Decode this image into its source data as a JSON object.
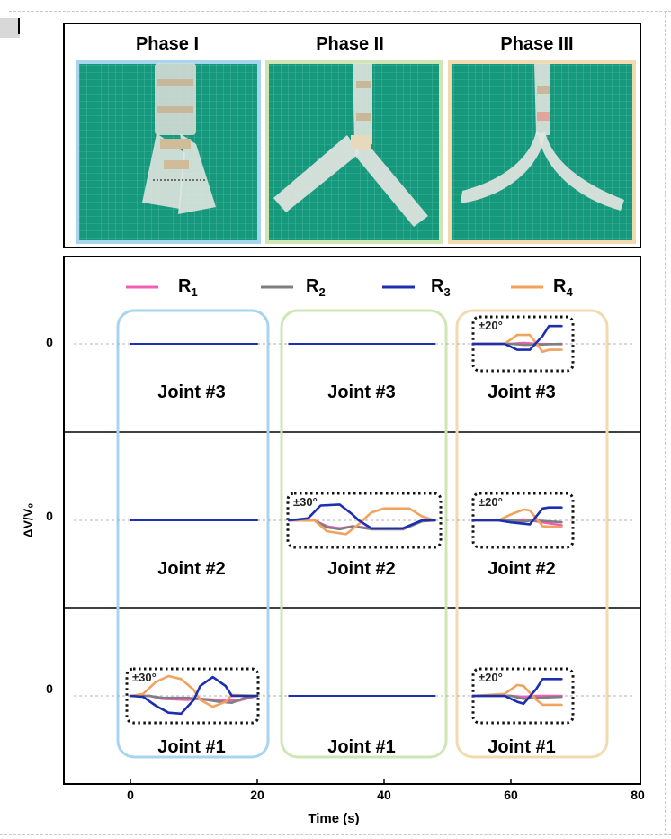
{
  "photo_panel": {
    "phases": [
      "Phase I",
      "Phase II",
      "Phase III"
    ],
    "frame_colors": [
      "#a9d4ee",
      "#cfe6b4",
      "#f2d9b0"
    ],
    "board_color": "#15987c"
  },
  "colors": {
    "R1": "#f05fb5",
    "R2": "#7f7f7f",
    "R3": "#1c2fb0",
    "R4": "#f0a25e",
    "phase1_box": "#a9d4ee",
    "phase2_box": "#cfe6b4",
    "phase3_box": "#f2d9b0"
  },
  "chart_data": {
    "type": "line",
    "title": "",
    "xlabel": "Time (s)",
    "ylabel": "ΔV/V₀",
    "xlim": [
      -10,
      80
    ],
    "xticks": [
      "0",
      "20",
      "40",
      "60",
      "80"
    ],
    "ytick_label": "0",
    "legend": [
      {
        "key": "R1",
        "base": "R",
        "sub": "1"
      },
      {
        "key": "R2",
        "base": "R",
        "sub": "2"
      },
      {
        "key": "R3",
        "base": "R",
        "sub": "3"
      },
      {
        "key": "R4",
        "base": "R",
        "sub": "4"
      }
    ],
    "legend_placement": "top",
    "grid": false,
    "rows": [
      {
        "joint": "Joint #3",
        "segments": [
          {
            "phase": "I",
            "label": "Joint #3",
            "box": null,
            "x": [
              0,
              20
            ],
            "series": {
              "R1": [
                [
                  0,
                  0
                ],
                [
                  20,
                  0
                ]
              ],
              "R2": [
                [
                  0,
                  0
                ],
                [
                  20,
                  0
                ]
              ],
              "R3": [
                [
                  0,
                  0
                ],
                [
                  20,
                  0
                ]
              ],
              "R4": [
                [
                  0,
                  0
                ],
                [
                  20,
                  0
                ]
              ]
            }
          },
          {
            "phase": "II",
            "label": "Joint #3",
            "box": null,
            "x": [
              25,
              48
            ],
            "series": {
              "R1": [
                [
                  25,
                  0
                ],
                [
                  48,
                  0
                ]
              ],
              "R2": [
                [
                  25,
                  0
                ],
                [
                  48,
                  0
                ]
              ],
              "R3": [
                [
                  25,
                  0
                ],
                [
                  48,
                  0
                ]
              ],
              "R4": [
                [
                  25,
                  0
                ],
                [
                  48,
                  0
                ]
              ]
            }
          },
          {
            "phase": "III",
            "label": "Joint #3",
            "box": "±20°",
            "x": [
              54,
              68
            ],
            "series": {
              "R1": [
                [
                  54,
                  0
                ],
                [
                  60,
                  0
                ],
                [
                  62,
                  0.05
                ],
                [
                  64,
                  0
                ],
                [
                  68,
                  -0.02
                ]
              ],
              "R2": [
                [
                  54,
                  0
                ],
                [
                  60,
                  0
                ],
                [
                  62,
                  -0.05
                ],
                [
                  64,
                  -0.04
                ],
                [
                  68,
                  0
                ]
              ],
              "R3": [
                [
                  54,
                  0
                ],
                [
                  59,
                  0
                ],
                [
                  61,
                  -0.3
                ],
                [
                  63,
                  -0.3
                ],
                [
                  65,
                  0.4
                ],
                [
                  66,
                  0.9
                ],
                [
                  68,
                  0.9
                ]
              ],
              "R4": [
                [
                  54,
                  0
                ],
                [
                  59,
                  0
                ],
                [
                  61,
                  0.45
                ],
                [
                  63,
                  0.45
                ],
                [
                  65,
                  -0.4
                ],
                [
                  66,
                  -0.3
                ],
                [
                  68,
                  -0.3
                ]
              ]
            }
          }
        ]
      },
      {
        "joint": "Joint #2",
        "segments": [
          {
            "phase": "I",
            "label": "Joint #2",
            "box": null,
            "x": [
              0,
              20
            ],
            "series": {
              "R1": [
                [
                  0,
                  0
                ],
                [
                  20,
                  0
                ]
              ],
              "R2": [
                [
                  0,
                  0
                ],
                [
                  20,
                  0
                ]
              ],
              "R3": [
                [
                  0,
                  0
                ],
                [
                  20,
                  0
                ]
              ],
              "R4": [
                [
                  0,
                  0
                ],
                [
                  20,
                  0
                ]
              ]
            }
          },
          {
            "phase": "II",
            "label": "Joint #2",
            "box": "±30°",
            "x": [
              25,
              48
            ],
            "series": {
              "R1": [
                [
                  25,
                  0
                ],
                [
                  29,
                  0
                ],
                [
                  31,
                  -0.3
                ],
                [
                  33,
                  -0.4
                ],
                [
                  35,
                  -0.3
                ],
                [
                  38,
                  -0.4
                ],
                [
                  43,
                  -0.4
                ],
                [
                  46,
                  0
                ],
                [
                  48,
                  0
                ]
              ],
              "R2": [
                [
                  25,
                  0
                ],
                [
                  29,
                  0
                ],
                [
                  31,
                  -0.35
                ],
                [
                  33,
                  -0.45
                ],
                [
                  35,
                  -0.3
                ],
                [
                  38,
                  -0.45
                ],
                [
                  43,
                  -0.45
                ],
                [
                  46,
                  -0.05
                ],
                [
                  48,
                  0
                ]
              ],
              "R3": [
                [
                  25,
                  0
                ],
                [
                  28,
                  0.1
                ],
                [
                  30,
                  0.75
                ],
                [
                  33,
                  0.8
                ],
                [
                  35,
                  0.3
                ],
                [
                  36,
                  0
                ],
                [
                  38,
                  -0.4
                ],
                [
                  43,
                  -0.4
                ],
                [
                  46,
                  0
                ],
                [
                  48,
                  0
                ]
              ],
              "R4": [
                [
                  25,
                  0
                ],
                [
                  29,
                  0
                ],
                [
                  31,
                  -0.55
                ],
                [
                  34,
                  -0.7
                ],
                [
                  36,
                  -0.2
                ],
                [
                  38,
                  0.4
                ],
                [
                  40,
                  0.6
                ],
                [
                  44,
                  0.6
                ],
                [
                  46,
                  0.2
                ],
                [
                  48,
                  0
                ]
              ]
            }
          },
          {
            "phase": "III",
            "label": "Joint #2",
            "box": "±20°",
            "x": [
              54,
              68
            ],
            "series": {
              "R1": [
                [
                  54,
                  0
                ],
                [
                  60,
                  0
                ],
                [
                  62,
                  0.05
                ],
                [
                  64,
                  -0.05
                ],
                [
                  68,
                  -0.25
                ]
              ],
              "R2": [
                [
                  54,
                  0
                ],
                [
                  60,
                  0
                ],
                [
                  62,
                  -0.05
                ],
                [
                  64,
                  0
                ],
                [
                  68,
                  -0.1
                ]
              ],
              "R3": [
                [
                  54,
                  0
                ],
                [
                  58,
                  0
                ],
                [
                  60,
                  -0.1
                ],
                [
                  63,
                  -0.2
                ],
                [
                  65,
                  0.6
                ],
                [
                  66,
                  0.65
                ],
                [
                  68,
                  0.65
                ]
              ],
              "R4": [
                [
                  54,
                  0
                ],
                [
                  58,
                  0
                ],
                [
                  60,
                  0.3
                ],
                [
                  62,
                  0.55
                ],
                [
                  63,
                  0.5
                ],
                [
                  65,
                  -0.3
                ],
                [
                  68,
                  -0.35
                ]
              ]
            }
          }
        ]
      },
      {
        "joint": "Joint #1",
        "segments": [
          {
            "phase": "I",
            "label": "Joint #1",
            "box": "±30°",
            "x": [
              0,
              20
            ],
            "series": {
              "R1": [
                [
                  0,
                  0
                ],
                [
                  3,
                  0
                ],
                [
                  5,
                  -0.15
                ],
                [
                  9,
                  -0.2
                ],
                [
                  11,
                  -0.15
                ],
                [
                  14,
                  -0.2
                ],
                [
                  17,
                  -0.25
                ],
                [
                  20,
                  0
                ]
              ],
              "R2": [
                [
                  0,
                  0
                ],
                [
                  3,
                  0
                ],
                [
                  5,
                  -0.1
                ],
                [
                  9,
                  -0.1
                ],
                [
                  11,
                  -0.15
                ],
                [
                  14,
                  -0.3
                ],
                [
                  16,
                  -0.35
                ],
                [
                  18,
                  -0.1
                ],
                [
                  20,
                  0
                ]
              ],
              "R3": [
                [
                  0,
                  0
                ],
                [
                  2,
                  -0.05
                ],
                [
                  4,
                  -0.5
                ],
                [
                  6,
                  -0.85
                ],
                [
                  8,
                  -0.9
                ],
                [
                  10,
                  -0.2
                ],
                [
                  11,
                  0.5
                ],
                [
                  13,
                  0.95
                ],
                [
                  15,
                  0.5
                ],
                [
                  16,
                  0
                ],
                [
                  20,
                  0
                ]
              ],
              "R4": [
                [
                  0,
                  0
                ],
                [
                  2,
                  0.1
                ],
                [
                  4,
                  0.7
                ],
                [
                  6,
                  1.0
                ],
                [
                  8,
                  0.85
                ],
                [
                  10,
                  0.3
                ],
                [
                  11,
                  -0.2
                ],
                [
                  13,
                  -0.55
                ],
                [
                  15,
                  -0.3
                ],
                [
                  16,
                  0.05
                ],
                [
                  20,
                  0
                ]
              ]
            }
          },
          {
            "phase": "II",
            "label": "Joint #1",
            "box": null,
            "x": [
              25,
              48
            ],
            "series": {
              "R1": [
                [
                  25,
                  0
                ],
                [
                  48,
                  0
                ]
              ],
              "R2": [
                [
                  25,
                  0
                ],
                [
                  48,
                  0
                ]
              ],
              "R3": [
                [
                  25,
                  0
                ],
                [
                  48,
                  0
                ]
              ],
              "R4": [
                [
                  25,
                  0
                ],
                [
                  48,
                  0
                ]
              ]
            }
          },
          {
            "phase": "III",
            "label": "Joint #1",
            "box": "±20°",
            "x": [
              54,
              68
            ],
            "series": {
              "R1": [
                [
                  54,
                  0
                ],
                [
                  60,
                  0
                ],
                [
                  62,
                  -0.05
                ],
                [
                  64,
                  0
                ],
                [
                  68,
                  0
                ]
              ],
              "R2": [
                [
                  54,
                  0
                ],
                [
                  60,
                  0
                ],
                [
                  62,
                  -0.15
                ],
                [
                  64,
                  -0.1
                ],
                [
                  68,
                  -0.05
                ]
              ],
              "R3": [
                [
                  54,
                  0
                ],
                [
                  59,
                  0
                ],
                [
                  61,
                  -0.3
                ],
                [
                  62,
                  -0.4
                ],
                [
                  64,
                  0.35
                ],
                [
                  65,
                  0.85
                ],
                [
                  68,
                  0.85
                ]
              ],
              "R4": [
                [
                  54,
                  0
                ],
                [
                  59,
                  0.1
                ],
                [
                  61,
                  0.55
                ],
                [
                  62,
                  0.5
                ],
                [
                  64,
                  -0.2
                ],
                [
                  65,
                  -0.45
                ],
                [
                  68,
                  -0.45
                ]
              ]
            }
          }
        ]
      }
    ]
  }
}
